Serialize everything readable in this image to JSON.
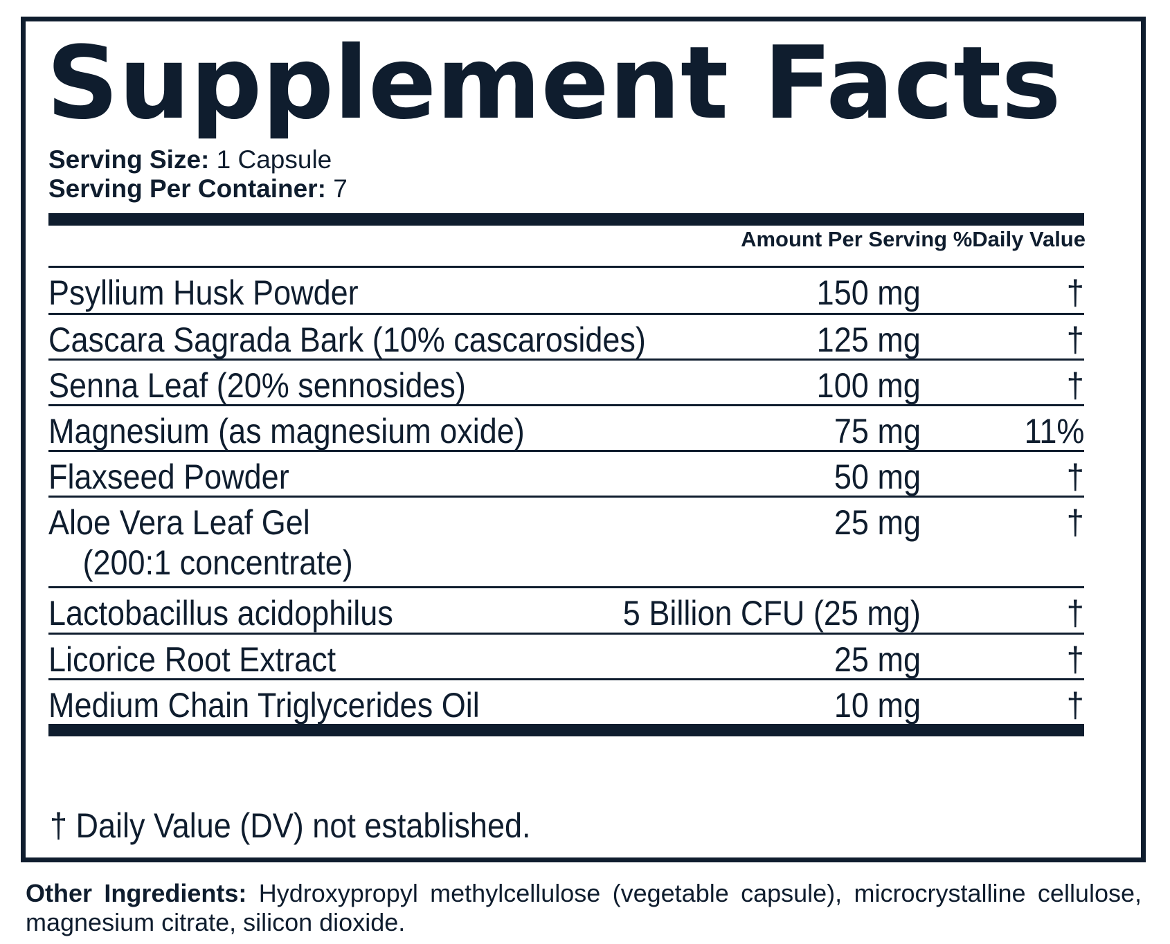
{
  "title": "Supplement Facts",
  "serving": {
    "size_label": "Serving Size:",
    "size_value": " 1 Capsule",
    "per_container_label": "Serving Per Container:",
    "per_container_value": " 7"
  },
  "table": {
    "header": "Amount Per Serving %Daily Value",
    "rows": [
      {
        "name": "Psyllium Husk Powder",
        "sub": "",
        "amount": "150 mg",
        "dv": "†"
      },
      {
        "name": "Cascara Sagrada Bark (10% cascarosides)",
        "sub": "",
        "amount": "125 mg",
        "dv": "†"
      },
      {
        "name": "Senna Leaf (20% sennosides)",
        "sub": "",
        "amount": "100 mg",
        "dv": "†"
      },
      {
        "name": "Magnesium (as magnesium oxide)",
        "sub": "",
        "amount": "75 mg",
        "dv": "11%"
      },
      {
        "name": "Flaxseed Powder",
        "sub": "",
        "amount": "50 mg",
        "dv": "†"
      },
      {
        "name": "Aloe Vera Leaf Gel",
        "sub": "(200:1 concentrate)",
        "amount": "25 mg",
        "dv": "†"
      },
      {
        "name": "Lactobacillus acidophilus",
        "sub": "",
        "amount": "5 Billion CFU (25 mg)",
        "dv": "†"
      },
      {
        "name": "Licorice Root Extract",
        "sub": "",
        "amount": "25 mg",
        "dv": "†"
      },
      {
        "name": "Medium Chain Triglycerides Oil",
        "sub": "",
        "amount": "10 mg",
        "dv": "†"
      }
    ]
  },
  "footnote": "† Daily Value (DV) not established.",
  "other_ingredients": {
    "label": "Other Ingredients:",
    "text": " Hydroxypropyl methylcellulose (vegetable capsule), microcrystalline cellulose, magnesium citrate, silicon dioxide."
  },
  "colors": {
    "ink": "#0f1d2e",
    "background": "#ffffff"
  }
}
